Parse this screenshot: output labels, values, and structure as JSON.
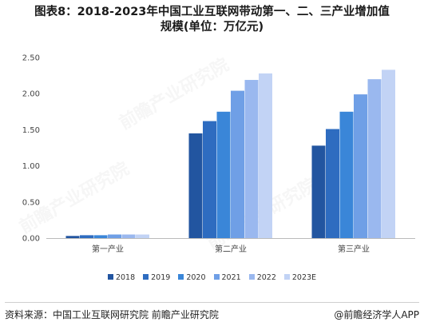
{
  "header": {
    "title_line1": "图表8：2018-2023年中国工业互联网带动第一、二、三产业增加值",
    "title_line2": "规模(单位：万亿元)"
  },
  "colors": [
    "#2255a0",
    "#2e6cc0",
    "#3a86d8",
    "#6f9fe6",
    "#9ab8ef",
    "#c2d3f5"
  ],
  "chart_data": {
    "type": "bar",
    "categories": [
      "第一产业",
      "第二产业",
      "第三产业"
    ],
    "series": [
      {
        "name": "2018",
        "values": [
          0.03,
          1.45,
          1.28
        ]
      },
      {
        "name": "2019",
        "values": [
          0.04,
          1.62,
          1.51
        ]
      },
      {
        "name": "2020",
        "values": [
          0.04,
          1.75,
          1.75
        ]
      },
      {
        "name": "2021",
        "values": [
          0.05,
          2.04,
          1.99
        ]
      },
      {
        "name": "2022",
        "values": [
          0.05,
          2.19,
          2.2
        ]
      },
      {
        "name": "2023E",
        "values": [
          0.05,
          2.28,
          2.33
        ]
      }
    ],
    "yticks": [
      "0.00",
      "0.50",
      "1.00",
      "1.50",
      "2.00",
      "2.50"
    ],
    "ylim": [
      0,
      2.5
    ],
    "grid": false,
    "legend": "bottom"
  },
  "footer": {
    "source": "资料来源：中国工业互联网研究院 前瞻产业研究院",
    "brand": "@前瞻经济学人APP"
  },
  "watermark": "前瞻产业研究院"
}
